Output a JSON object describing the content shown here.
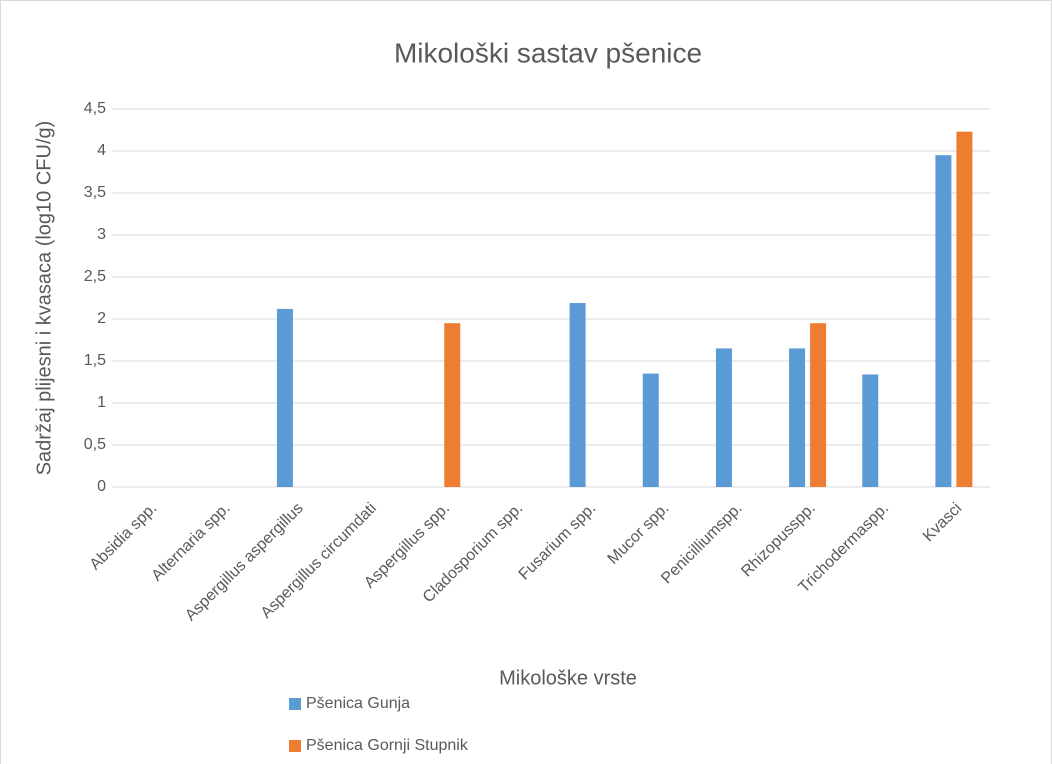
{
  "chart_data": {
    "type": "bar",
    "title": "Mikološki sastav pšenice",
    "x_label": "Mikološke vrste",
    "y_label": "Sadržaj plijesni i kvasaca (log10 CFU/g)",
    "categories": [
      "Absidia spp.",
      "Alternaria spp.",
      "Aspergillus aspergillus",
      "Aspergillus circumdati",
      "Aspergillus spp.",
      "Cladosporium spp.",
      "Fusarium spp.",
      "Mucor spp.",
      "Penicilliumspp.",
      "Rhizopusspp.",
      "Trichodermaspp.",
      "Kvasci"
    ],
    "series": [
      {
        "name": "Pšenica Gunja",
        "color": "#5b9bd5",
        "values": [
          0,
          0,
          2.12,
          0,
          0,
          0,
          2.19,
          1.35,
          1.65,
          1.65,
          1.34,
          3.95
        ]
      },
      {
        "name": "Pšenica Gornji Stupnik",
        "color": "#ed7d31",
        "values": [
          0,
          0,
          0,
          0,
          1.95,
          0,
          0,
          0,
          0,
          1.95,
          0,
          4.23
        ]
      }
    ],
    "ylim": [
      0,
      4.5
    ],
    "yticks": [
      0,
      {
        "value": 0.5,
        "label": "0,5"
      },
      1,
      {
        "value": 1.5,
        "label": "1,5"
      },
      2,
      {
        "value": 2.5,
        "label": "2,5"
      },
      3,
      {
        "value": 3.5,
        "label": "3,5"
      },
      4,
      {
        "value": 4.5,
        "label": "4,5"
      }
    ],
    "grid": true,
    "legend": "bottom"
  }
}
